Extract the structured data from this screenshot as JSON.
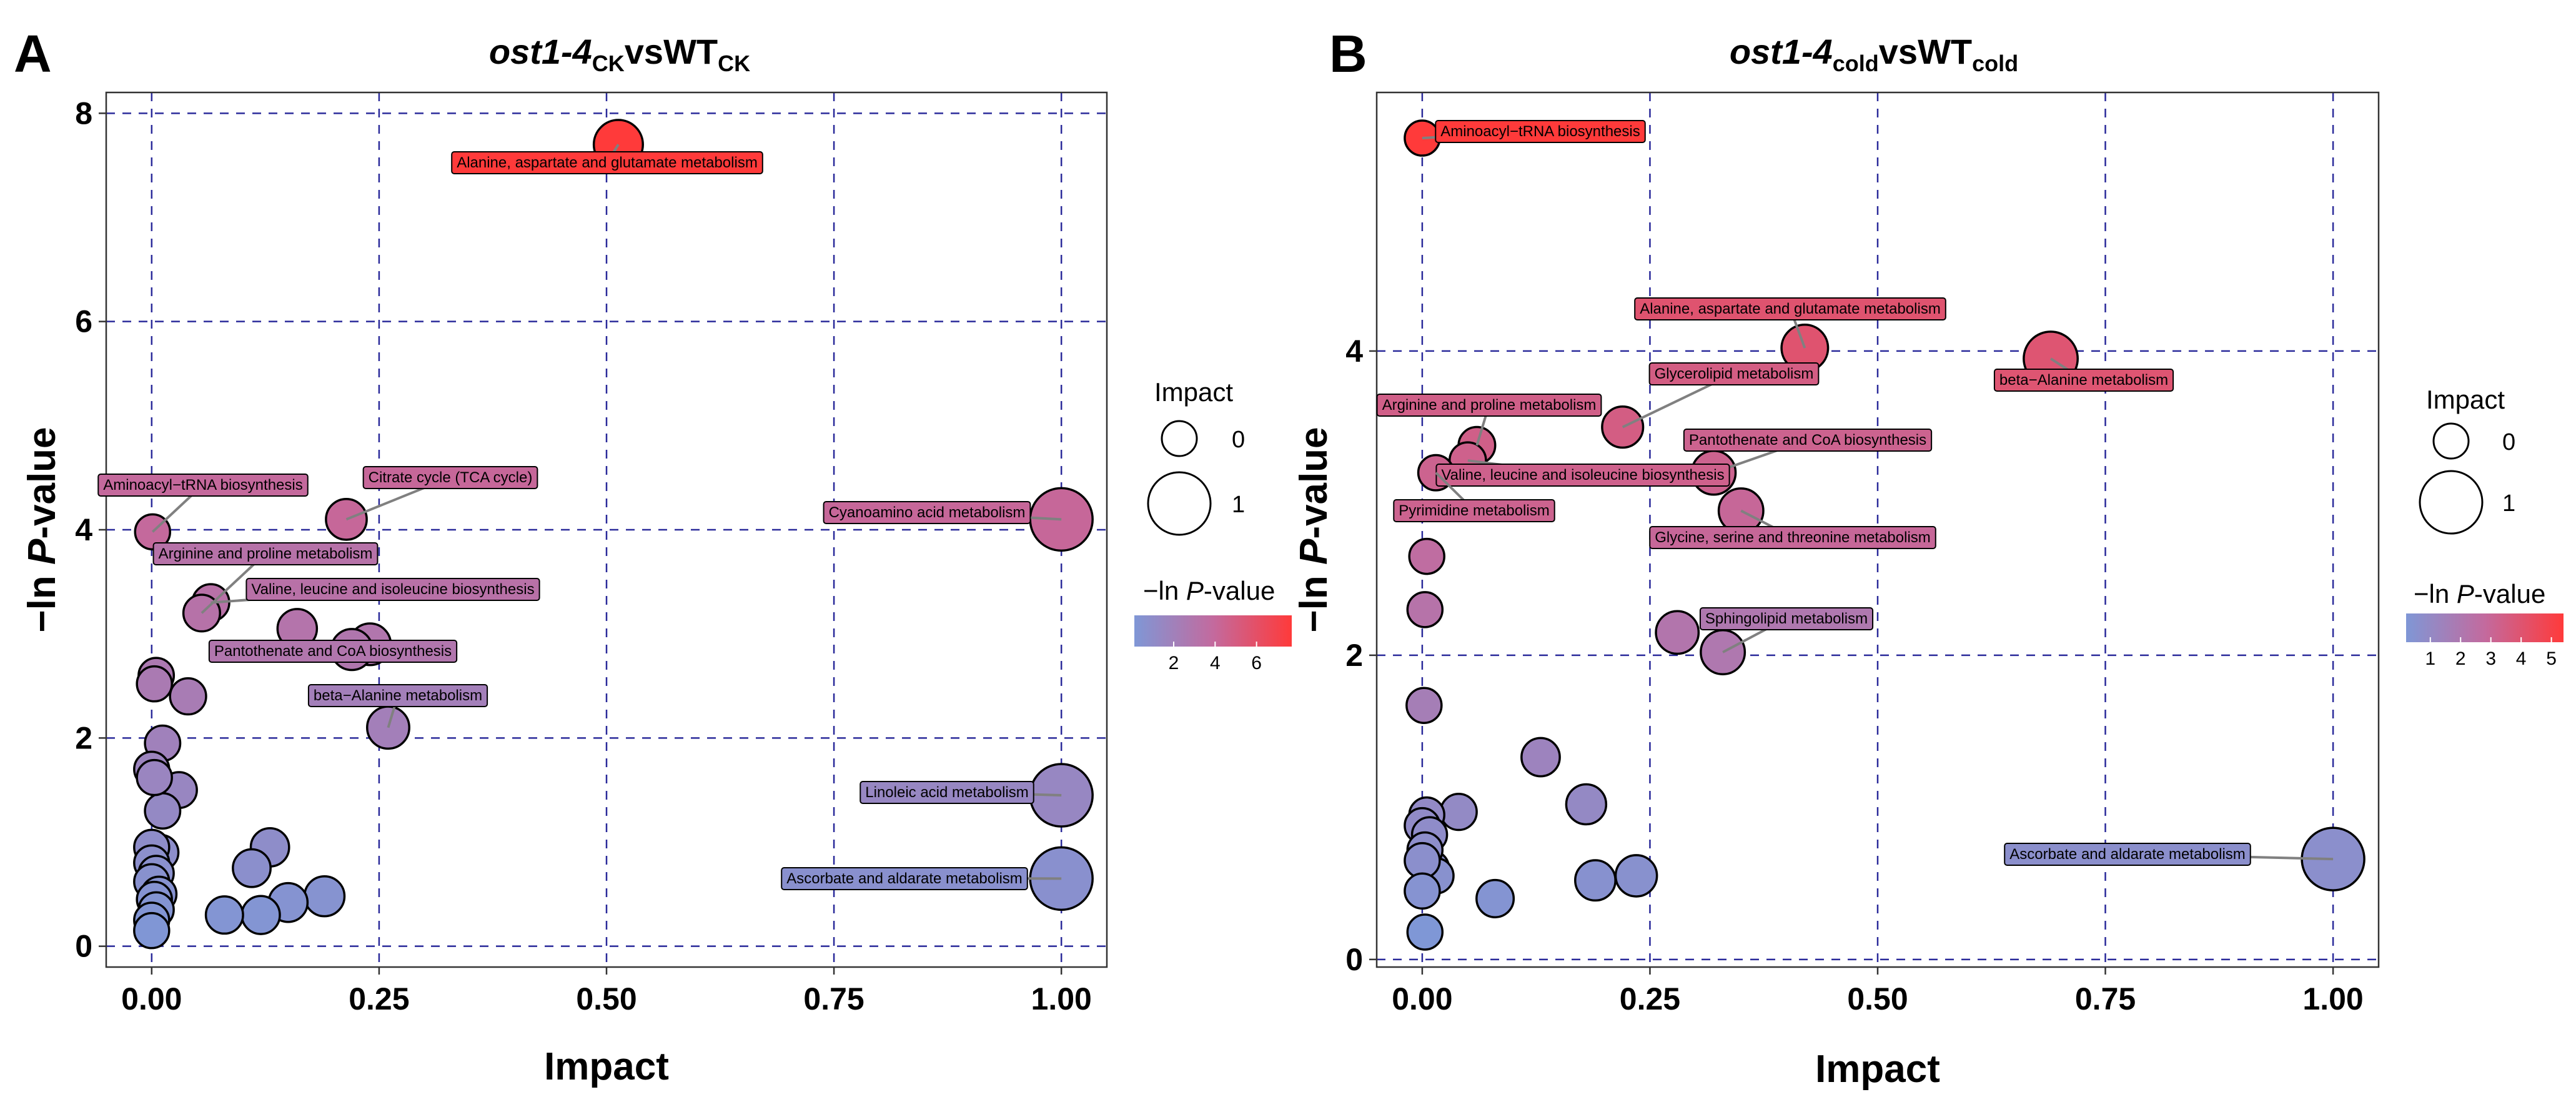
{
  "colors": {
    "low": "#7f97d6",
    "mid": "#c36a9e",
    "high": "#ff3a3a",
    "grid": "#2a2a9a"
  },
  "chart_data": [
    {
      "type": "scatter",
      "panel_letter": "A",
      "title": {
        "main": "ost1-4",
        "sub1": "CK",
        "mid": "vsWT",
        "sub2": "CK"
      },
      "xlabel": "Impact",
      "ylabel": "−ln P-value",
      "ylabel_prefix": "−ln ",
      "ylabel_italic": "P",
      "ylabel_suffix": "-value",
      "xlim": [
        -0.05,
        1.05
      ],
      "ylim": [
        -0.2,
        8.2
      ],
      "xticks": [
        0,
        0.25,
        0.5,
        0.75,
        1
      ],
      "xtick_labels": [
        "0.00",
        "0.25",
        "0.50",
        "0.75",
        "1.00"
      ],
      "yticks": [
        0,
        2,
        4,
        6,
        8
      ],
      "ytick_labels": [
        "0",
        "2",
        "4",
        "6",
        "8"
      ],
      "color_range": [
        0.1,
        7.7
      ],
      "points": [
        {
          "x": 0.513,
          "y": 7.7,
          "impact": 0.513,
          "label": "Alanine, aspartate and glutamate metabolism"
        },
        {
          "x": 1.0,
          "y": 4.1,
          "impact": 1.0,
          "label": "Cyanoamino acid metabolism"
        },
        {
          "x": 0.001,
          "y": 3.98,
          "impact": 0.0,
          "label": "Aminoacyl−tRNA biosynthesis"
        },
        {
          "x": 0.214,
          "y": 4.1,
          "impact": 0.21,
          "label": "Citrate cycle (TCA cycle)"
        },
        {
          "x": 0.055,
          "y": 3.2,
          "impact": 0.06,
          "label": "Arginine and proline metabolism"
        },
        {
          "x": 0.065,
          "y": 3.3,
          "impact": 0.07,
          "label": "Valine, leucine and isoleucine biosynthesis"
        },
        {
          "x": 0.24,
          "y": 2.9,
          "impact": 0.24,
          "label": "Pantothenate and CoA biosynthesis"
        },
        {
          "x": 0.26,
          "y": 2.1,
          "impact": 0.26,
          "label": "beta−Alanine metabolism"
        },
        {
          "x": 1.0,
          "y": 1.45,
          "impact": 1.0,
          "label": "Linoleic acid metabolism"
        },
        {
          "x": 1.0,
          "y": 0.65,
          "impact": 1.0,
          "label": "Ascorbate and aldarate metabolism"
        },
        {
          "x": 0.16,
          "y": 3.05,
          "impact": 0.16,
          "label": ""
        },
        {
          "x": 0.22,
          "y": 2.85,
          "impact": 0.22,
          "label": ""
        },
        {
          "x": 0.005,
          "y": 2.6,
          "impact": 0.01,
          "label": ""
        },
        {
          "x": 0.003,
          "y": 2.52,
          "impact": 0.0,
          "label": ""
        },
        {
          "x": 0.04,
          "y": 2.4,
          "impact": 0.04,
          "label": ""
        },
        {
          "x": 0.012,
          "y": 1.95,
          "impact": 0.01,
          "label": ""
        },
        {
          "x": 0.0,
          "y": 1.7,
          "impact": 0.0,
          "label": ""
        },
        {
          "x": 0.003,
          "y": 1.62,
          "impact": 0.0,
          "label": ""
        },
        {
          "x": 0.03,
          "y": 1.5,
          "impact": 0.03,
          "label": ""
        },
        {
          "x": 0.012,
          "y": 1.3,
          "impact": 0.01,
          "label": ""
        },
        {
          "x": 0.0,
          "y": 0.95,
          "impact": 0.0,
          "label": ""
        },
        {
          "x": 0.01,
          "y": 0.9,
          "impact": 0.01,
          "label": ""
        },
        {
          "x": 0.0,
          "y": 0.8,
          "impact": 0.0,
          "label": ""
        },
        {
          "x": 0.005,
          "y": 0.7,
          "impact": 0.0,
          "label": ""
        },
        {
          "x": 0.0,
          "y": 0.62,
          "impact": 0.0,
          "label": ""
        },
        {
          "x": 0.008,
          "y": 0.5,
          "impact": 0.0,
          "label": ""
        },
        {
          "x": 0.003,
          "y": 0.45,
          "impact": 0.0,
          "label": ""
        },
        {
          "x": 0.005,
          "y": 0.35,
          "impact": 0.0,
          "label": ""
        },
        {
          "x": 0.0,
          "y": 0.25,
          "impact": 0.0,
          "label": ""
        },
        {
          "x": 0.0,
          "y": 0.15,
          "impact": 0.0,
          "label": ""
        },
        {
          "x": 0.13,
          "y": 0.95,
          "impact": 0.12,
          "label": ""
        },
        {
          "x": 0.11,
          "y": 0.75,
          "impact": 0.1,
          "label": ""
        },
        {
          "x": 0.19,
          "y": 0.48,
          "impact": 0.18,
          "label": ""
        },
        {
          "x": 0.15,
          "y": 0.42,
          "impact": 0.14,
          "label": ""
        },
        {
          "x": 0.08,
          "y": 0.3,
          "impact": 0.08,
          "label": ""
        },
        {
          "x": 0.12,
          "y": 0.3,
          "impact": 0.11,
          "label": ""
        }
      ],
      "legend_size": {
        "title": "Impact",
        "entries": [
          "0",
          "1"
        ]
      },
      "legend_color": {
        "title_prefix": "−ln ",
        "title_italic": "P",
        "title_suffix": "-value",
        "ticks": [
          "2",
          "4",
          "6"
        ],
        "tick_values": [
          2,
          4,
          6
        ]
      }
    },
    {
      "type": "scatter",
      "panel_letter": "B",
      "title": {
        "main": "ost1-4",
        "sub1": "cold",
        "mid": "vsWT",
        "sub2": "cold"
      },
      "xlabel": "Impact",
      "ylabel": "−ln P-value",
      "ylabel_prefix": "−ln ",
      "ylabel_italic": "P",
      "ylabel_suffix": "-value",
      "xlim": [
        -0.05,
        1.05
      ],
      "ylim": [
        -0.05,
        5.7
      ],
      "xticks": [
        0,
        0.25,
        0.5,
        0.75,
        1
      ],
      "xtick_labels": [
        "0.00",
        "0.25",
        "0.50",
        "0.75",
        "1.00"
      ],
      "yticks": [
        0,
        2,
        4
      ],
      "ytick_labels": [
        "0",
        "2",
        "4"
      ],
      "color_range": [
        0.2,
        5.4
      ],
      "points": [
        {
          "x": 0.0,
          "y": 5.4,
          "impact": 0.0,
          "label": "Aminoacyl−tRNA biosynthesis"
        },
        {
          "x": 0.42,
          "y": 4.02,
          "impact": 0.42,
          "label": "Alanine, aspartate and glutamate metabolism"
        },
        {
          "x": 0.69,
          "y": 3.95,
          "impact": 0.69,
          "label": "beta−Alanine metabolism"
        },
        {
          "x": 0.22,
          "y": 3.5,
          "impact": 0.22,
          "label": "Glycerolipid metabolism"
        },
        {
          "x": 0.06,
          "y": 3.38,
          "impact": 0.06,
          "label": "Arginine and proline metabolism"
        },
        {
          "x": 0.32,
          "y": 3.2,
          "impact": 0.32,
          "label": "Pantothenate and CoA biosynthesis"
        },
        {
          "x": 0.05,
          "y": 3.28,
          "impact": 0.05,
          "label": "Valine, leucine and isoleucine biosynthesis"
        },
        {
          "x": 0.015,
          "y": 3.2,
          "impact": 0.01,
          "label": "Pyrimidine metabolism"
        },
        {
          "x": 0.35,
          "y": 2.95,
          "impact": 0.35,
          "label": "Glycine, serine and threonine metabolism"
        },
        {
          "x": 0.33,
          "y": 2.02,
          "impact": 0.33,
          "label": "Sphingolipid metabolism"
        },
        {
          "x": 1.0,
          "y": 0.66,
          "impact": 1.0,
          "label": "Ascorbate and aldarate metabolism"
        },
        {
          "x": 0.28,
          "y": 2.15,
          "impact": 0.28,
          "label": ""
        },
        {
          "x": 0.005,
          "y": 2.65,
          "impact": 0.0,
          "label": ""
        },
        {
          "x": 0.003,
          "y": 2.3,
          "impact": 0.0,
          "label": ""
        },
        {
          "x": 0.002,
          "y": 1.67,
          "impact": 0.0,
          "label": ""
        },
        {
          "x": 0.13,
          "y": 1.33,
          "impact": 0.12,
          "label": ""
        },
        {
          "x": 0.18,
          "y": 1.02,
          "impact": 0.18,
          "label": ""
        },
        {
          "x": 0.04,
          "y": 0.97,
          "impact": 0.04,
          "label": ""
        },
        {
          "x": 0.005,
          "y": 0.95,
          "impact": 0.0,
          "label": ""
        },
        {
          "x": 0.0,
          "y": 0.88,
          "impact": 0.0,
          "label": ""
        },
        {
          "x": 0.008,
          "y": 0.82,
          "impact": 0.0,
          "label": ""
        },
        {
          "x": 0.003,
          "y": 0.72,
          "impact": 0.0,
          "label": ""
        },
        {
          "x": 0.0,
          "y": 0.65,
          "impact": 0.0,
          "label": ""
        },
        {
          "x": 0.01,
          "y": 0.6,
          "impact": 0.01,
          "label": ""
        },
        {
          "x": 0.015,
          "y": 0.55,
          "impact": 0.01,
          "label": ""
        },
        {
          "x": 0.0,
          "y": 0.45,
          "impact": 0.0,
          "label": ""
        },
        {
          "x": 0.003,
          "y": 0.18,
          "impact": 0.0,
          "label": ""
        },
        {
          "x": 0.235,
          "y": 0.55,
          "impact": 0.23,
          "label": ""
        },
        {
          "x": 0.19,
          "y": 0.52,
          "impact": 0.19,
          "label": ""
        },
        {
          "x": 0.08,
          "y": 0.4,
          "impact": 0.08,
          "label": ""
        }
      ],
      "legend_size": {
        "title": "Impact",
        "entries": [
          "0",
          "1"
        ]
      },
      "legend_color": {
        "title_prefix": "−ln ",
        "title_italic": "P",
        "title_suffix": "-value",
        "ticks": [
          "1",
          "2",
          "3",
          "4",
          "5"
        ],
        "tick_values": [
          1,
          2,
          3,
          4,
          5
        ]
      }
    }
  ]
}
